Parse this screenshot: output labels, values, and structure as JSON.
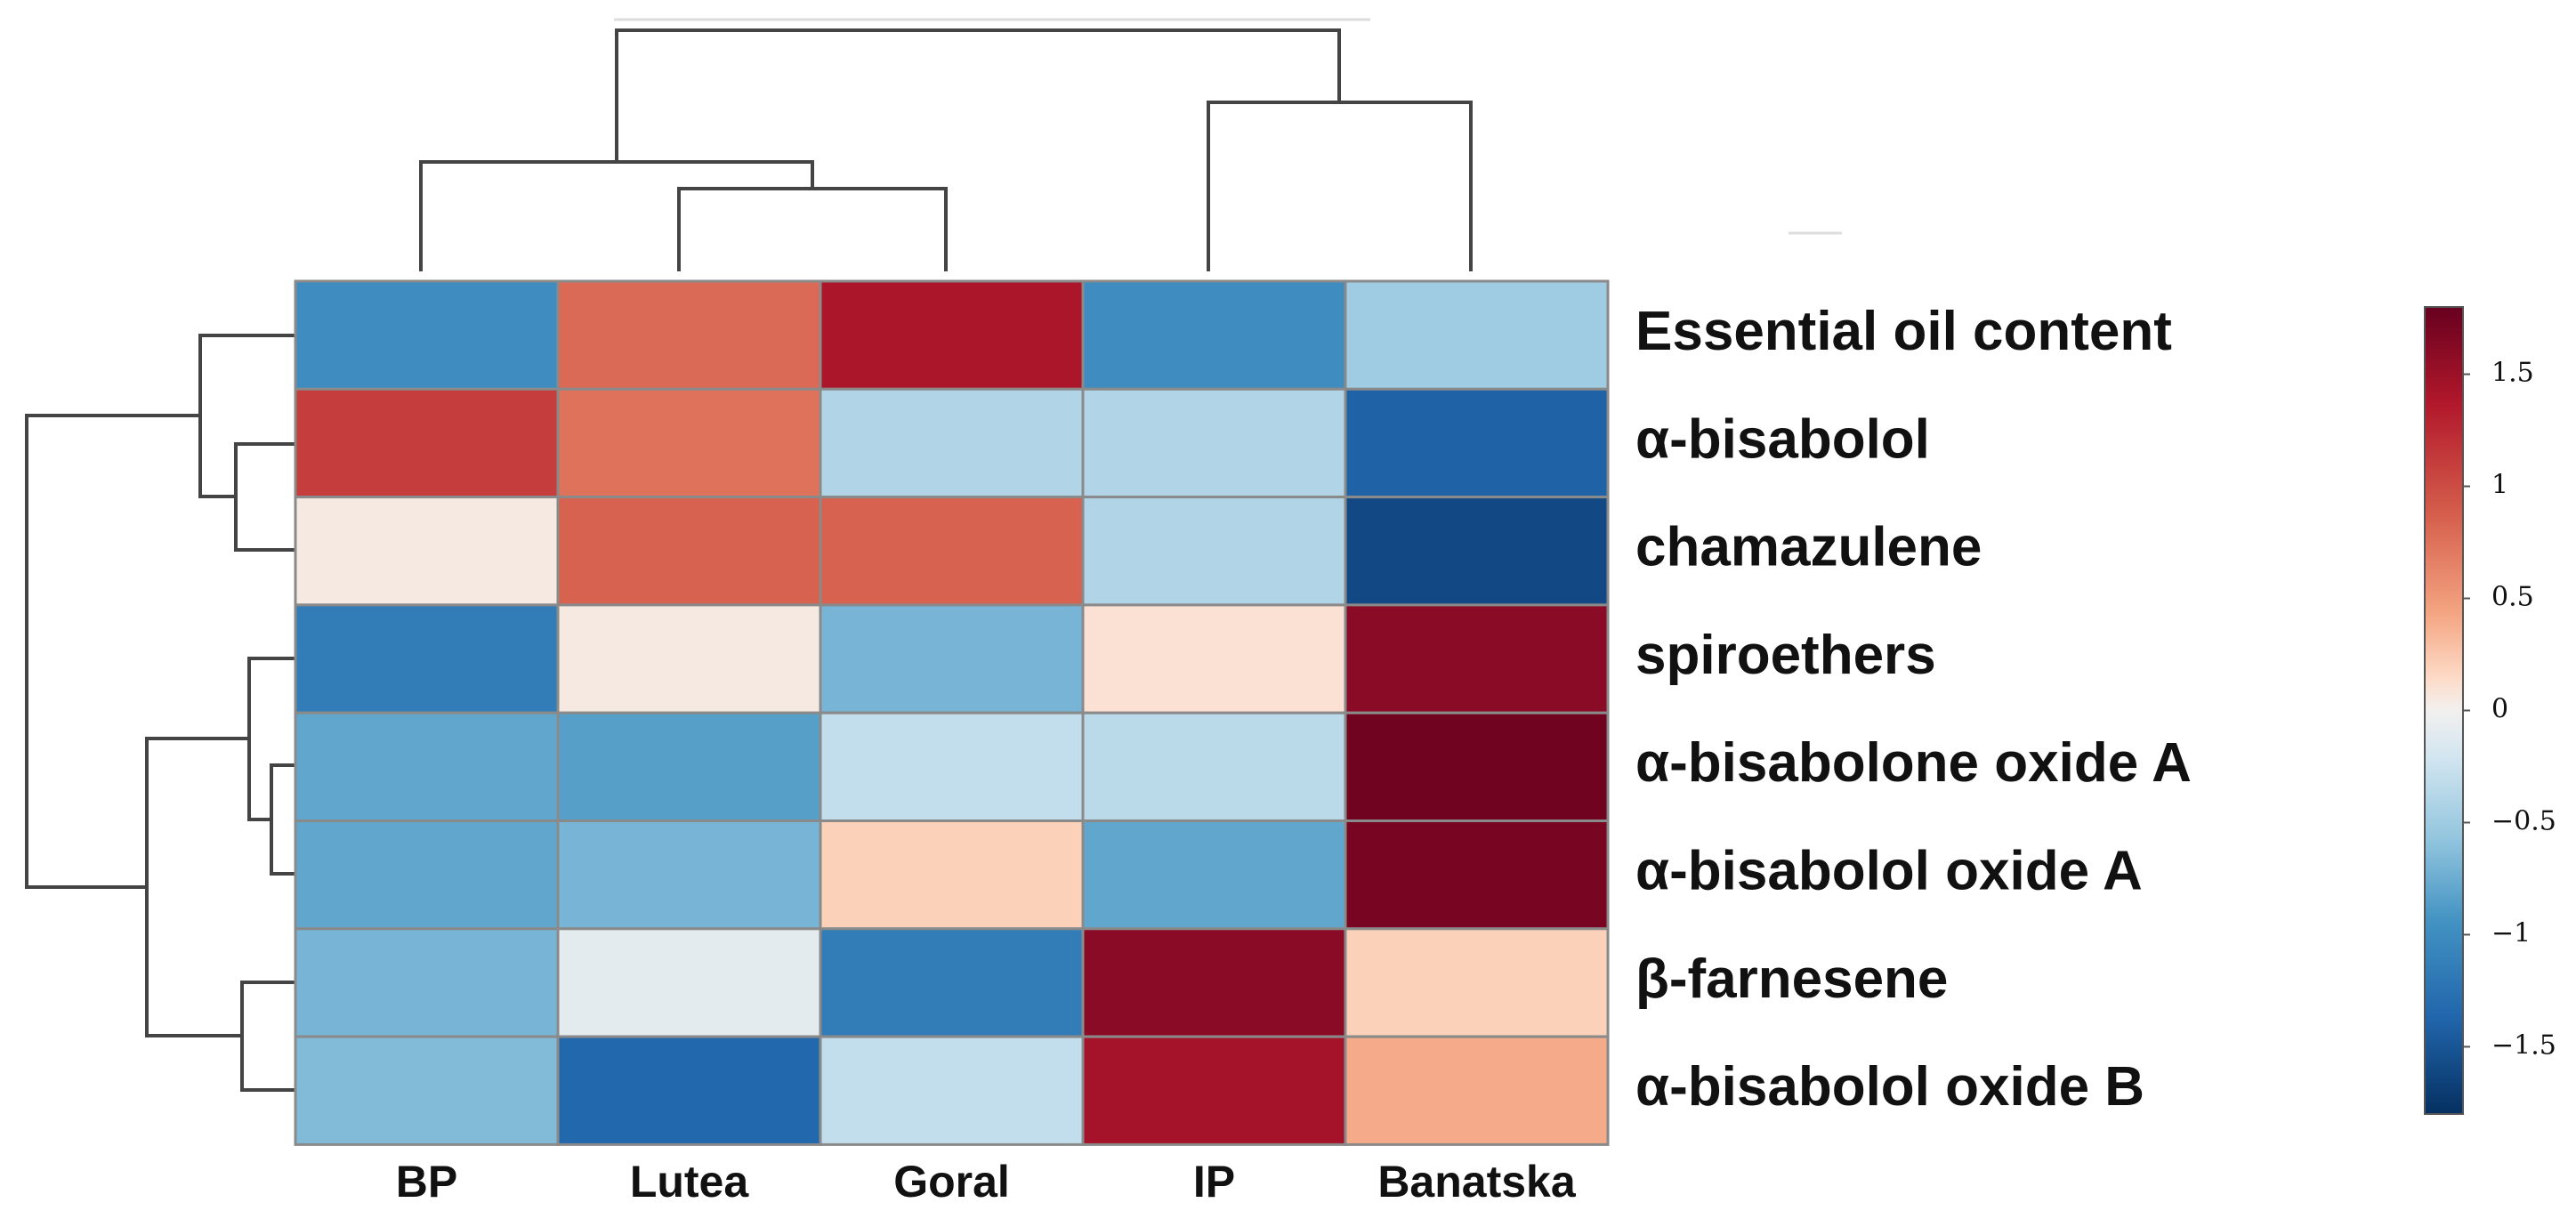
{
  "chart_data": {
    "type": "heatmap",
    "title": "",
    "xlabel": "",
    "ylabel": "",
    "columns": [
      "BP",
      "Lutea",
      "Goral",
      "IP",
      "Banatska"
    ],
    "rows": [
      "Essential oil content",
      "α-bisabolol",
      "chamazulene",
      "spiroethers",
      "α-bisabolone oxide A",
      "α-bisabolol oxide A",
      "β-farnesene",
      "α-bisabolol oxide B"
    ],
    "values": [
      [
        -1.0,
        0.8,
        1.4,
        -1.0,
        -0.5
      ],
      [
        1.1,
        0.75,
        -0.4,
        -0.4,
        -1.4
      ],
      [
        0.05,
        0.85,
        0.85,
        -0.4,
        -1.6
      ],
      [
        -1.15,
        0.05,
        -0.7,
        0.1,
        1.6
      ],
      [
        -0.8,
        -0.85,
        -0.3,
        -0.35,
        1.75
      ],
      [
        -0.8,
        -0.7,
        0.2,
        -0.8,
        1.7
      ],
      [
        -0.7,
        -0.1,
        -1.15,
        1.6,
        0.2
      ],
      [
        -0.65,
        -1.35,
        -0.3,
        1.45,
        0.4
      ]
    ],
    "color_range": [
      -1.8,
      1.8
    ],
    "colorbar": {
      "ticks": [
        1.5,
        1,
        0.5,
        0,
        -0.5,
        -1,
        -1.5
      ],
      "tick_labels": [
        "1.5",
        "1",
        "0.5",
        "0",
        "−0.5",
        "−1",
        "−1.5"
      ],
      "placement": "right"
    },
    "colors": {
      "high": "#67001f",
      "mid": "#f2f0ef",
      "low": "#053061"
    },
    "dendrograms": {
      "columns": "(BP, (Lutea, Goral)), (IP, Banatska)",
      "rows": "((Essential oil content, (α-bisabolol, chamazulene)), ((spiroethers, (α-bisabolone oxide A, α-bisabolol oxide A)), (β-farnesene, α-bisabolol oxide B)))"
    }
  }
}
